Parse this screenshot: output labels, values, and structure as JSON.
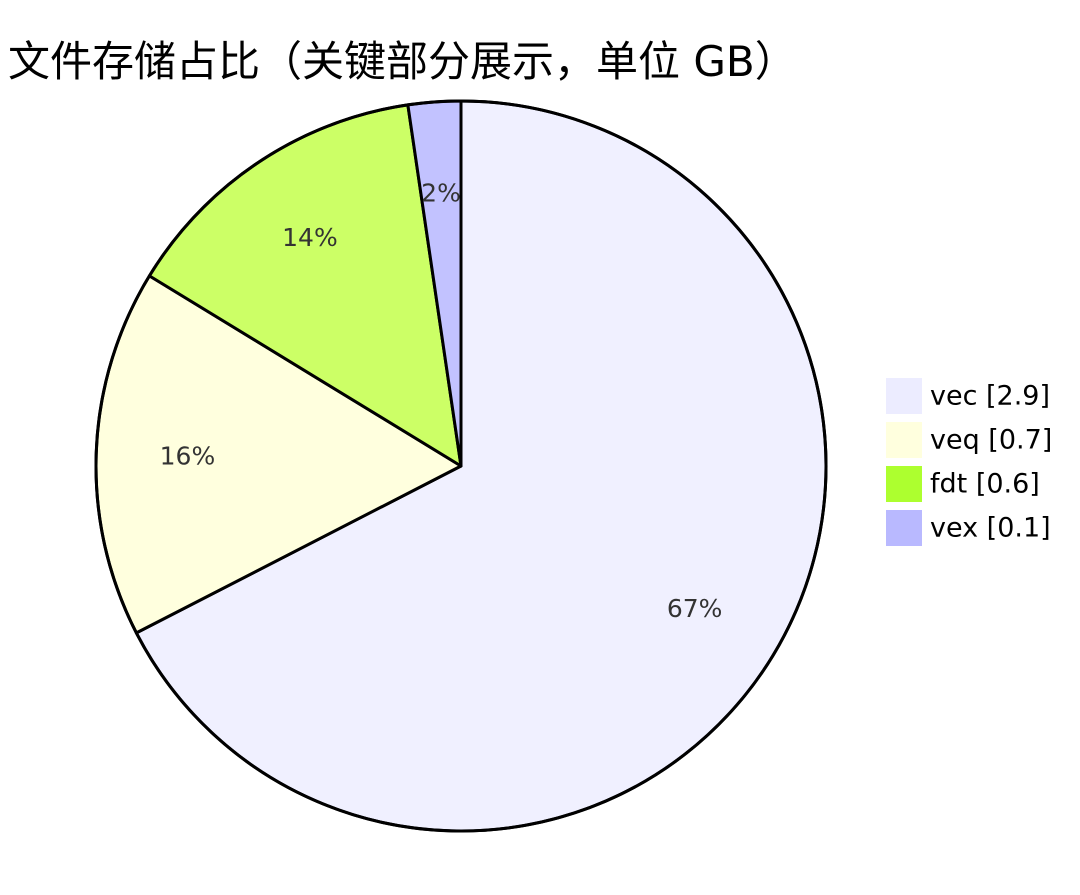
{
  "chart_data": {
    "type": "pie",
    "title": "文件存储占比（关键部分展示，单位 GB）",
    "slices": [
      {
        "name": "vec",
        "value": 2.9,
        "label": "67%",
        "legend": "vec [2.9]",
        "color": "#f0f0ff"
      },
      {
        "name": "veq",
        "value": 0.7,
        "label": "16%",
        "legend": "veq [0.7]",
        "color": "#ffffde"
      },
      {
        "name": "fdt",
        "value": 0.6,
        "label": "14%",
        "legend": "fdt [0.6]",
        "color": "#ccff66"
      },
      {
        "name": "vex",
        "value": 0.1,
        "label": "2%",
        "legend": "vex [0.1]",
        "color": "#c2c2ff"
      }
    ],
    "legend_position": "right",
    "legend_swatch_colors": [
      "#ececff",
      "#ffffde",
      "#adff2f",
      "#b9b9ff"
    ],
    "stroke_color": "#000000"
  }
}
